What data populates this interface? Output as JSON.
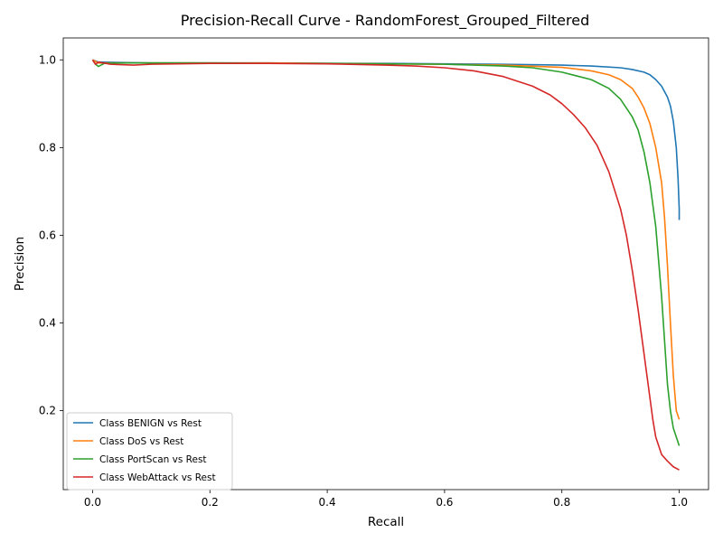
{
  "chart_data": {
    "type": "line",
    "title": "Precision-Recall Curve - RandomForest_Grouped_Filtered",
    "xlabel": "Recall",
    "ylabel": "Precision",
    "xlim": [
      -0.05,
      1.05
    ],
    "ylim": [
      0.02,
      1.05
    ],
    "xticks": [
      0.0,
      0.2,
      0.4,
      0.6,
      0.8,
      1.0
    ],
    "xtick_labels": [
      "0.0",
      "0.2",
      "0.4",
      "0.6",
      "0.8",
      "1.0"
    ],
    "yticks": [
      0.2,
      0.4,
      0.6,
      0.8,
      1.0
    ],
    "ytick_labels": [
      "0.2",
      "0.4",
      "0.6",
      "0.8",
      "1.0"
    ],
    "grid": false,
    "legend_position": "lower-left",
    "series": [
      {
        "name": "Class BENIGN vs Rest",
        "color": "#1f77b4",
        "x": [
          0.0,
          0.01,
          0.05,
          0.1,
          0.2,
          0.3,
          0.4,
          0.5,
          0.6,
          0.7,
          0.8,
          0.85,
          0.9,
          0.92,
          0.94,
          0.95,
          0.96,
          0.97,
          0.98,
          0.985,
          0.99,
          0.995,
          0.998,
          1.0,
          1.0
        ],
        "y": [
          1.0,
          0.995,
          0.994,
          0.993,
          0.993,
          0.993,
          0.992,
          0.992,
          0.991,
          0.99,
          0.988,
          0.986,
          0.982,
          0.978,
          0.972,
          0.966,
          0.955,
          0.94,
          0.915,
          0.895,
          0.86,
          0.8,
          0.73,
          0.66,
          0.635
        ]
      },
      {
        "name": "Class DoS vs Rest",
        "color": "#ff7f0e",
        "x": [
          0.0,
          0.01,
          0.05,
          0.1,
          0.2,
          0.3,
          0.4,
          0.5,
          0.6,
          0.7,
          0.8,
          0.85,
          0.88,
          0.9,
          0.92,
          0.93,
          0.94,
          0.95,
          0.96,
          0.97,
          0.975,
          0.98,
          0.985,
          0.99,
          0.995,
          1.0
        ],
        "y": [
          1.0,
          0.993,
          0.993,
          0.993,
          0.993,
          0.993,
          0.992,
          0.991,
          0.99,
          0.988,
          0.983,
          0.975,
          0.966,
          0.955,
          0.935,
          0.915,
          0.89,
          0.855,
          0.8,
          0.72,
          0.64,
          0.53,
          0.4,
          0.28,
          0.2,
          0.18
        ]
      },
      {
        "name": "Class PortScan vs Rest",
        "color": "#2ca02c",
        "x": [
          0.0,
          0.005,
          0.01,
          0.02,
          0.05,
          0.1,
          0.2,
          0.3,
          0.4,
          0.5,
          0.6,
          0.7,
          0.75,
          0.8,
          0.85,
          0.88,
          0.9,
          0.92,
          0.93,
          0.94,
          0.95,
          0.96,
          0.97,
          0.975,
          0.98,
          0.985,
          0.99,
          0.995,
          1.0
        ],
        "y": [
          1.0,
          0.99,
          0.985,
          0.992,
          0.993,
          0.993,
          0.993,
          0.992,
          0.992,
          0.991,
          0.99,
          0.986,
          0.982,
          0.972,
          0.955,
          0.935,
          0.91,
          0.87,
          0.84,
          0.79,
          0.72,
          0.62,
          0.46,
          0.36,
          0.26,
          0.2,
          0.16,
          0.14,
          0.12
        ]
      },
      {
        "name": "Class WebAttack vs Rest",
        "color": "#d62728",
        "x": [
          0.0,
          0.005,
          0.01,
          0.03,
          0.07,
          0.1,
          0.2,
          0.3,
          0.4,
          0.5,
          0.55,
          0.6,
          0.65,
          0.7,
          0.75,
          0.78,
          0.8,
          0.82,
          0.84,
          0.86,
          0.88,
          0.9,
          0.91,
          0.92,
          0.93,
          0.94,
          0.95,
          0.955,
          0.96,
          0.965,
          0.97,
          0.98,
          0.99,
          1.0
        ],
        "y": [
          1.0,
          0.99,
          0.995,
          0.99,
          0.988,
          0.99,
          0.992,
          0.992,
          0.991,
          0.988,
          0.986,
          0.982,
          0.975,
          0.962,
          0.94,
          0.92,
          0.9,
          0.875,
          0.845,
          0.805,
          0.745,
          0.66,
          0.6,
          0.52,
          0.43,
          0.33,
          0.23,
          0.18,
          0.14,
          0.12,
          0.1,
          0.085,
          0.072,
          0.065
        ]
      }
    ]
  }
}
